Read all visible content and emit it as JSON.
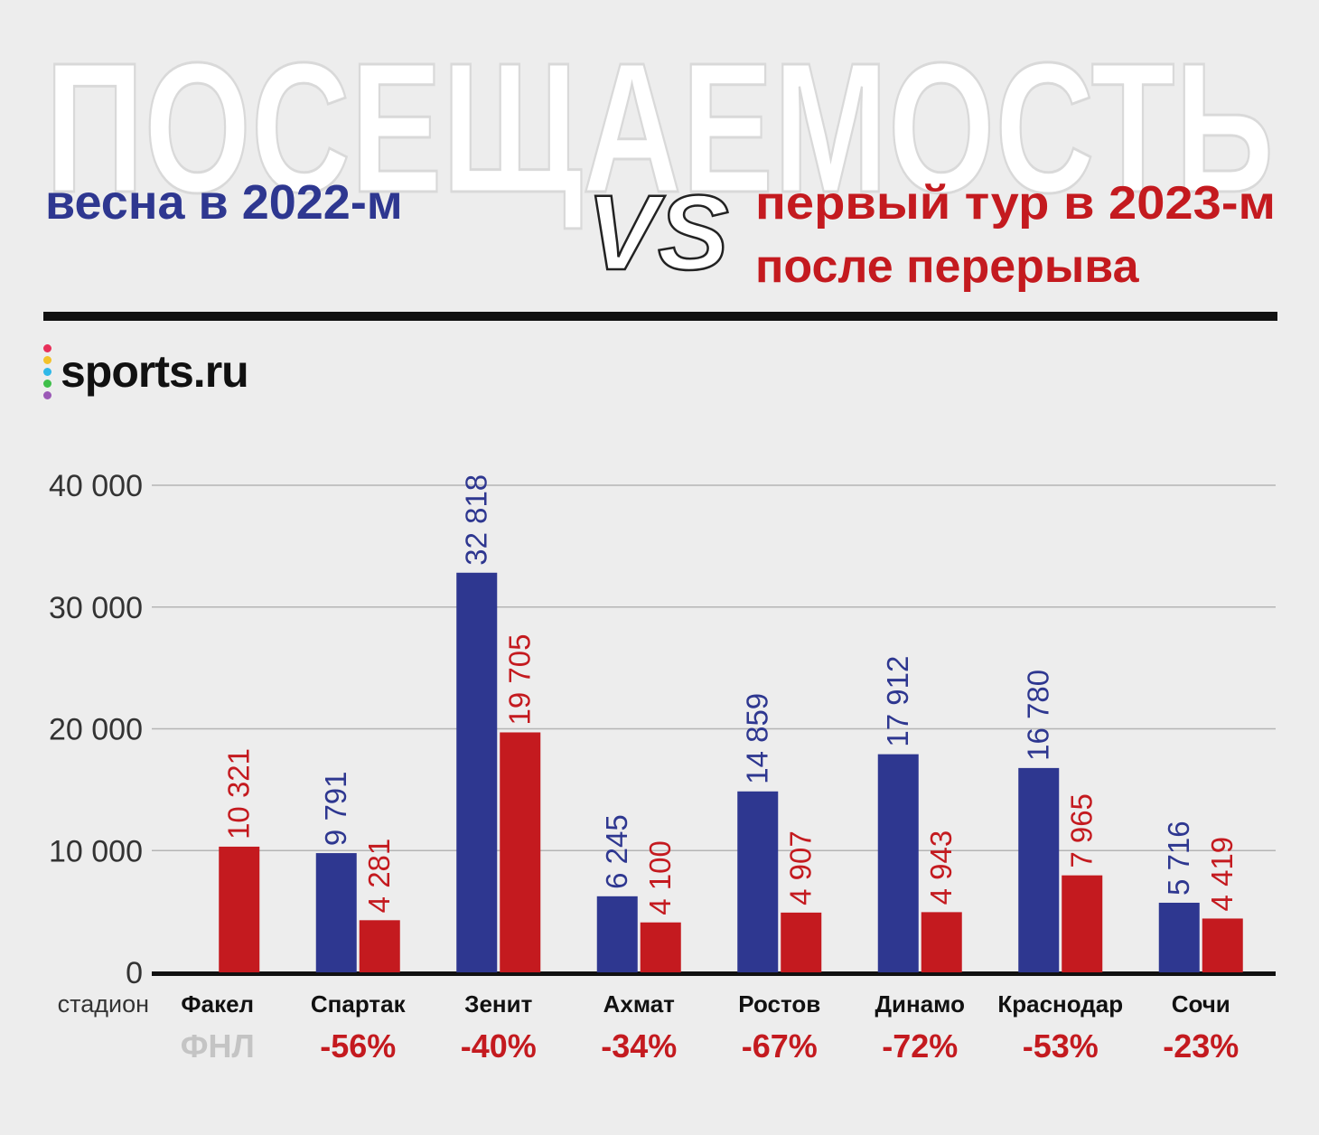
{
  "header": {
    "title": "ПОСЕЩАЕМОСТЬ",
    "left_caption": "весна в 2022-м",
    "vs": "VS",
    "right_caption_line1": "первый тур в 2023-м",
    "right_caption_line2": "после перерыва"
  },
  "brand": {
    "name": "sports.ru",
    "dot_colors": [
      "#e8305a",
      "#f3c22b",
      "#2fb8e8",
      "#3fbf4a",
      "#9b59b6"
    ]
  },
  "colors": {
    "series_2022": "#2e3790",
    "series_2023": "#c41a1f",
    "fnl_gray": "#c4c4c4",
    "text": "#111111"
  },
  "chart_data": {
    "type": "bar",
    "x_axis_label": "стадион",
    "ylim": [
      0,
      40000
    ],
    "y_ticks": [
      {
        "value": 0,
        "label": "0"
      },
      {
        "value": 10000,
        "label": "10 000"
      },
      {
        "value": 20000,
        "label": "20 000"
      },
      {
        "value": 30000,
        "label": "30 000"
      },
      {
        "value": 40000,
        "label": "40 000"
      }
    ],
    "grid": true,
    "categories": [
      "Факел",
      "Спартак",
      "Зенит",
      "Ахмат",
      "Ростов",
      "Динамо",
      "Краснодар",
      "Сочи"
    ],
    "series": [
      {
        "values": [
          null,
          9791,
          32818,
          6245,
          14859,
          17912,
          16780,
          5716
        ],
        "labels": [
          "",
          "9 791",
          "32 818",
          "6 245",
          "14 859",
          "17 912",
          "16 780",
          "5 716"
        ]
      },
      {
        "values": [
          10321,
          4281,
          19705,
          4100,
          4907,
          4943,
          7965,
          4419
        ],
        "labels": [
          "10 321",
          "4 281",
          "19 705",
          "4 100",
          "4 907",
          "4 943",
          "7 965",
          "4 419"
        ]
      }
    ],
    "changes": [
      "ФНЛ",
      "-56%",
      "-40%",
      "-34%",
      "-67%",
      "-72%",
      "-53%",
      "-23%"
    ]
  }
}
